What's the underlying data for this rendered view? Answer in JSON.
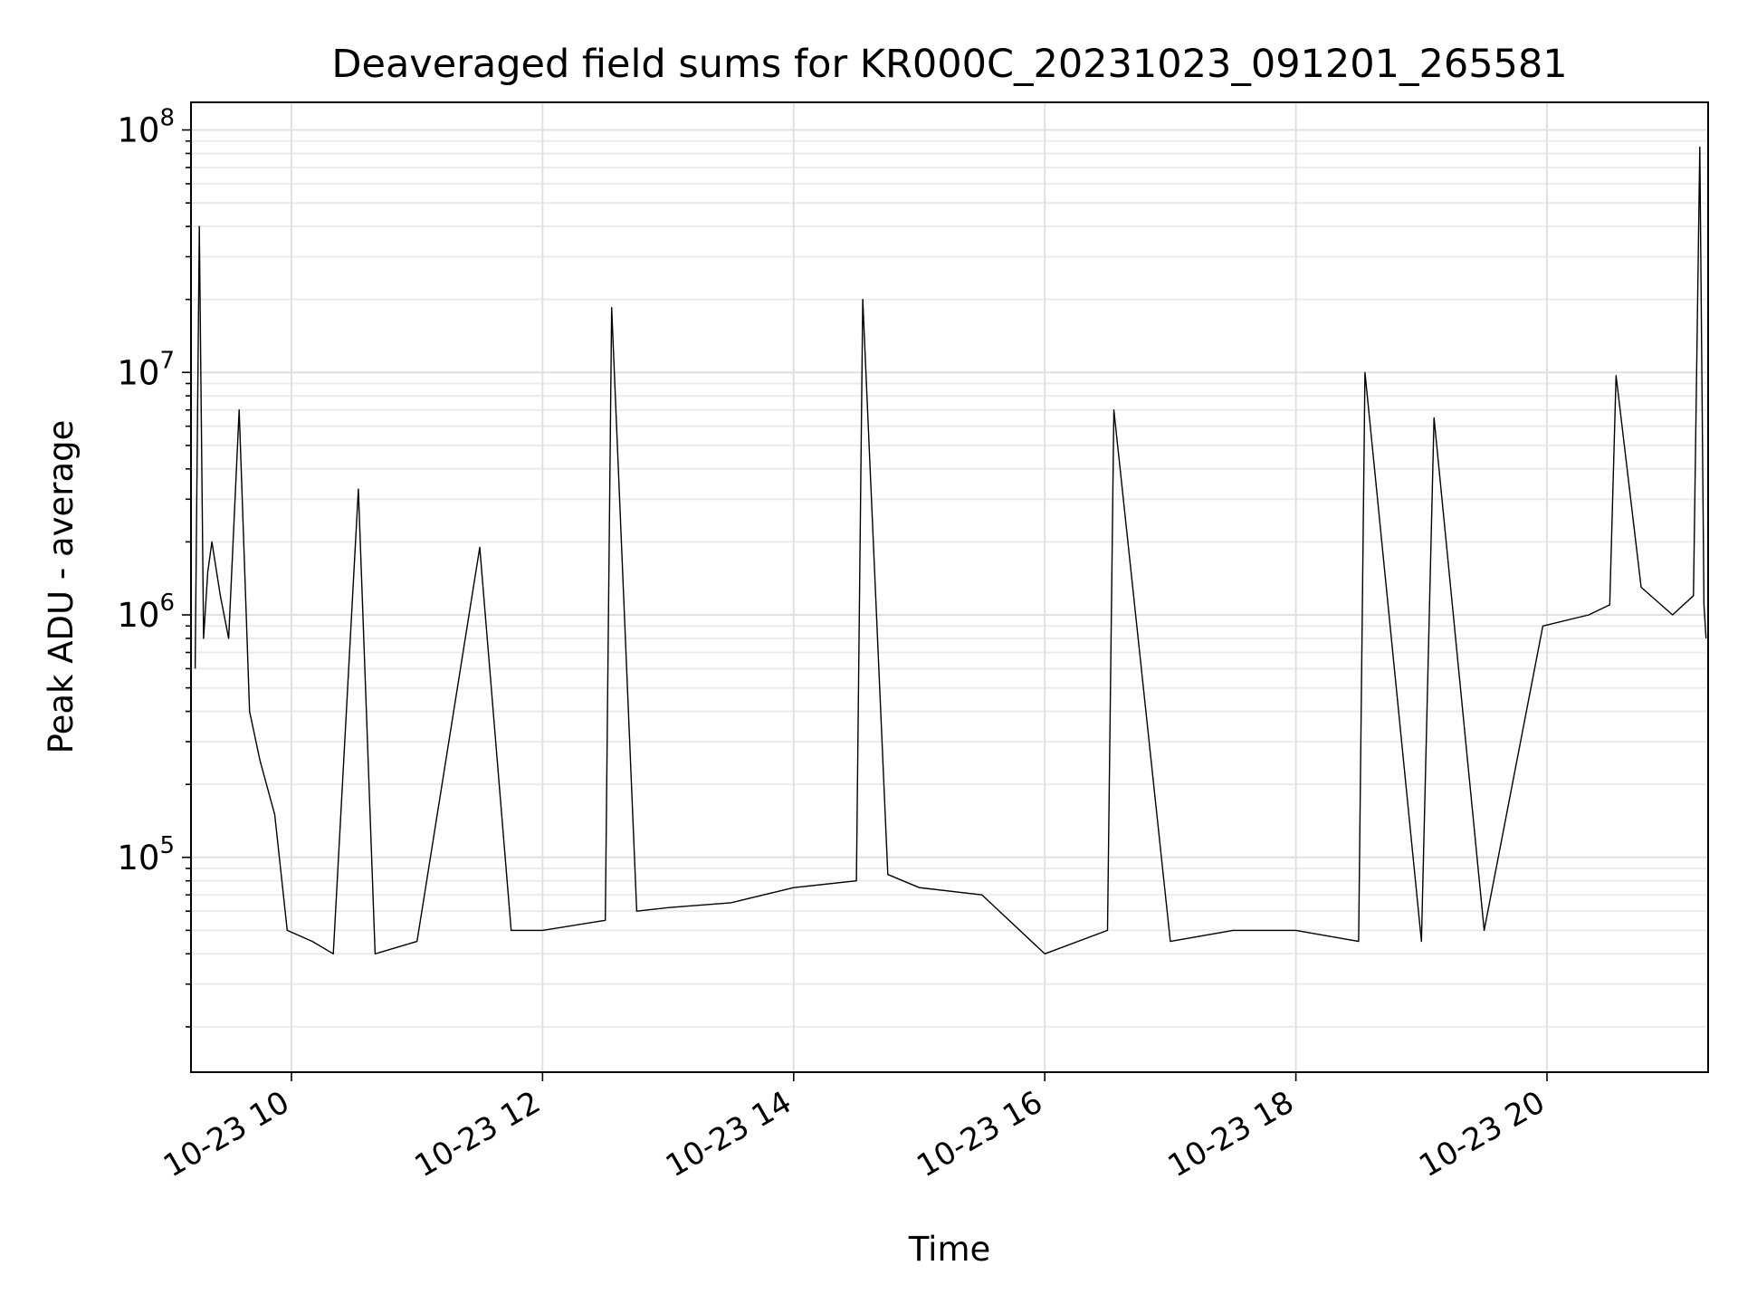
{
  "chart_data": {
    "type": "line",
    "title": "Deaveraged field sums for KR000C_20231023_091201_265581",
    "xlabel": "Time",
    "ylabel": "Peak ADU - average",
    "yscale": "log",
    "grid": true,
    "line_color": "#000000",
    "xlim": [
      "2023-10-23 09:12",
      "2023-10-23 21:17"
    ],
    "ylim": [
      13000,
      130000000
    ],
    "x_ticks": [
      {
        "label": "10-23 10",
        "time": "2023-10-23 10:00"
      },
      {
        "label": "10-23 12",
        "time": "2023-10-23 12:00"
      },
      {
        "label": "10-23 14",
        "time": "2023-10-23 14:00"
      },
      {
        "label": "10-23 16",
        "time": "2023-10-23 16:00"
      },
      {
        "label": "10-23 18",
        "time": "2023-10-23 18:00"
      },
      {
        "label": "10-23 20",
        "time": "2023-10-23 20:00"
      }
    ],
    "y_ticks": [
      {
        "base": "10",
        "exp": "5",
        "value": 100000
      },
      {
        "base": "10",
        "exp": "6",
        "value": 1000000
      },
      {
        "base": "10",
        "exp": "7",
        "value": 10000000
      },
      {
        "base": "10",
        "exp": "8",
        "value": 100000000
      }
    ],
    "series": [
      {
        "x": [
          "2023-10-23 09:14",
          "2023-10-23 09:16",
          "2023-10-23 09:18",
          "2023-10-23 09:20",
          "2023-10-23 09:22",
          "2023-10-23 09:26",
          "2023-10-23 09:30",
          "2023-10-23 09:35",
          "2023-10-23 09:40",
          "2023-10-23 09:45",
          "2023-10-23 09:52",
          "2023-10-23 09:58",
          "2023-10-23 10:10",
          "2023-10-23 10:20",
          "2023-10-23 10:32",
          "2023-10-23 10:40",
          "2023-10-23 11:00",
          "2023-10-23 11:30",
          "2023-10-23 11:45",
          "2023-10-23 12:00",
          "2023-10-23 12:30",
          "2023-10-23 12:33",
          "2023-10-23 12:45",
          "2023-10-23 13:00",
          "2023-10-23 13:30",
          "2023-10-23 14:00",
          "2023-10-23 14:30",
          "2023-10-23 14:33",
          "2023-10-23 14:45",
          "2023-10-23 15:00",
          "2023-10-23 15:30",
          "2023-10-23 16:00",
          "2023-10-23 16:30",
          "2023-10-23 16:33",
          "2023-10-23 17:00",
          "2023-10-23 17:30",
          "2023-10-23 18:00",
          "2023-10-23 18:30",
          "2023-10-23 18:33",
          "2023-10-23 19:00",
          "2023-10-23 19:06",
          "2023-10-23 19:30",
          "2023-10-23 19:58",
          "2023-10-23 20:20",
          "2023-10-23 20:30",
          "2023-10-23 20:33",
          "2023-10-23 20:45",
          "2023-10-23 21:00",
          "2023-10-23 21:10",
          "2023-10-23 21:13",
          "2023-10-23 21:15",
          "2023-10-23 21:16"
        ],
        "y": [
          600000,
          40000000,
          800000,
          1500000,
          2000000,
          1200000,
          800000,
          7000000,
          400000,
          250000,
          150000,
          50000,
          45000,
          40000,
          3300000,
          40000,
          45000,
          1900000,
          50000,
          50000,
          55000,
          18500000,
          60000,
          62000,
          65000,
          75000,
          80000,
          20000000,
          85000,
          75000,
          70000,
          40000,
          50000,
          7000000,
          45000,
          50000,
          50000,
          45000,
          10000000,
          45000,
          6500000,
          50000,
          900000,
          1000000,
          1100000,
          9700000,
          1300000,
          1000000,
          1200000,
          85000000,
          1100000,
          800000
        ]
      }
    ]
  }
}
